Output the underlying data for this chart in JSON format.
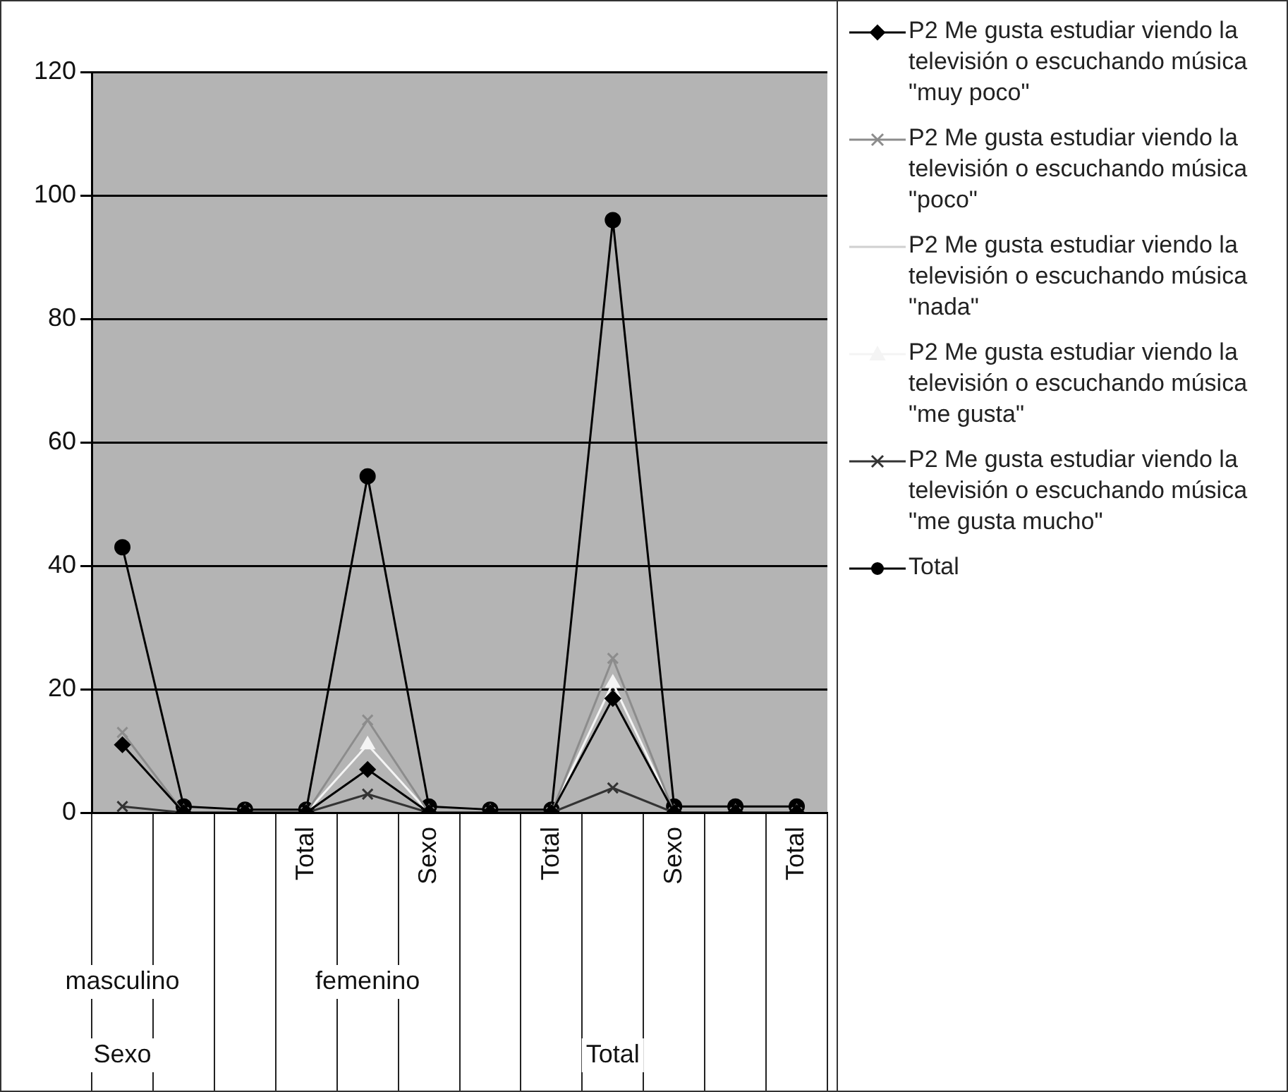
{
  "chart_data": {
    "type": "line",
    "categories": [
      null,
      null,
      null,
      "Total",
      null,
      "Sexo",
      null,
      "Total",
      null,
      "Sexo",
      null,
      "Total"
    ],
    "series": [
      {
        "name": "P2 Me gusta estudiar viendo la televisión o escuchando música \"muy poco\"",
        "color": "#000000",
        "marker": "diamond",
        "values": [
          11,
          0,
          0,
          0,
          7,
          0,
          0,
          0,
          18.5,
          0,
          0,
          0
        ]
      },
      {
        "name": "P2 Me gusta estudiar viendo la televisión o escuchando música \"poco\"",
        "color": "#8c8c8c",
        "marker": "cross",
        "values": [
          13,
          0,
          0,
          0,
          15,
          0,
          0,
          0,
          25,
          0,
          0,
          0
        ]
      },
      {
        "name": "P2 Me gusta estudiar viendo la televisión o escuchando música \"nada\"",
        "color": "#d0d0d0",
        "marker": "none",
        "values": [
          null,
          null,
          null,
          null,
          null,
          null,
          null,
          null,
          null,
          null,
          null,
          null
        ]
      },
      {
        "name": "P2 Me gusta estudiar viendo la televisión o escuchando música \"me gusta\"",
        "color": "#f4f4f4",
        "marker": "triangle",
        "values": [
          null,
          0,
          0,
          0,
          11,
          0,
          0,
          0,
          21,
          0,
          0,
          0
        ]
      },
      {
        "name": "P2 Me gusta estudiar viendo la televisión o escuchando música \"me gusta mucho\"",
        "color": "#333333",
        "marker": "cross",
        "values": [
          1,
          0,
          0,
          0,
          3,
          0,
          0,
          0,
          4,
          0,
          0,
          0
        ]
      },
      {
        "name": "Total",
        "color": "#000000",
        "marker": "circle",
        "values": [
          43,
          1,
          0.5,
          0.5,
          54.5,
          1,
          0.5,
          0.5,
          96,
          1,
          1,
          1
        ]
      }
    ],
    "annotations": [
      "masculino",
      "femenino",
      "Sexo",
      "Total"
    ],
    "ylim": [
      0,
      120
    ],
    "yticks": [
      0,
      20,
      40,
      60,
      80,
      100,
      120
    ],
    "grid": "y",
    "legend": "right",
    "line_style": "solid"
  }
}
